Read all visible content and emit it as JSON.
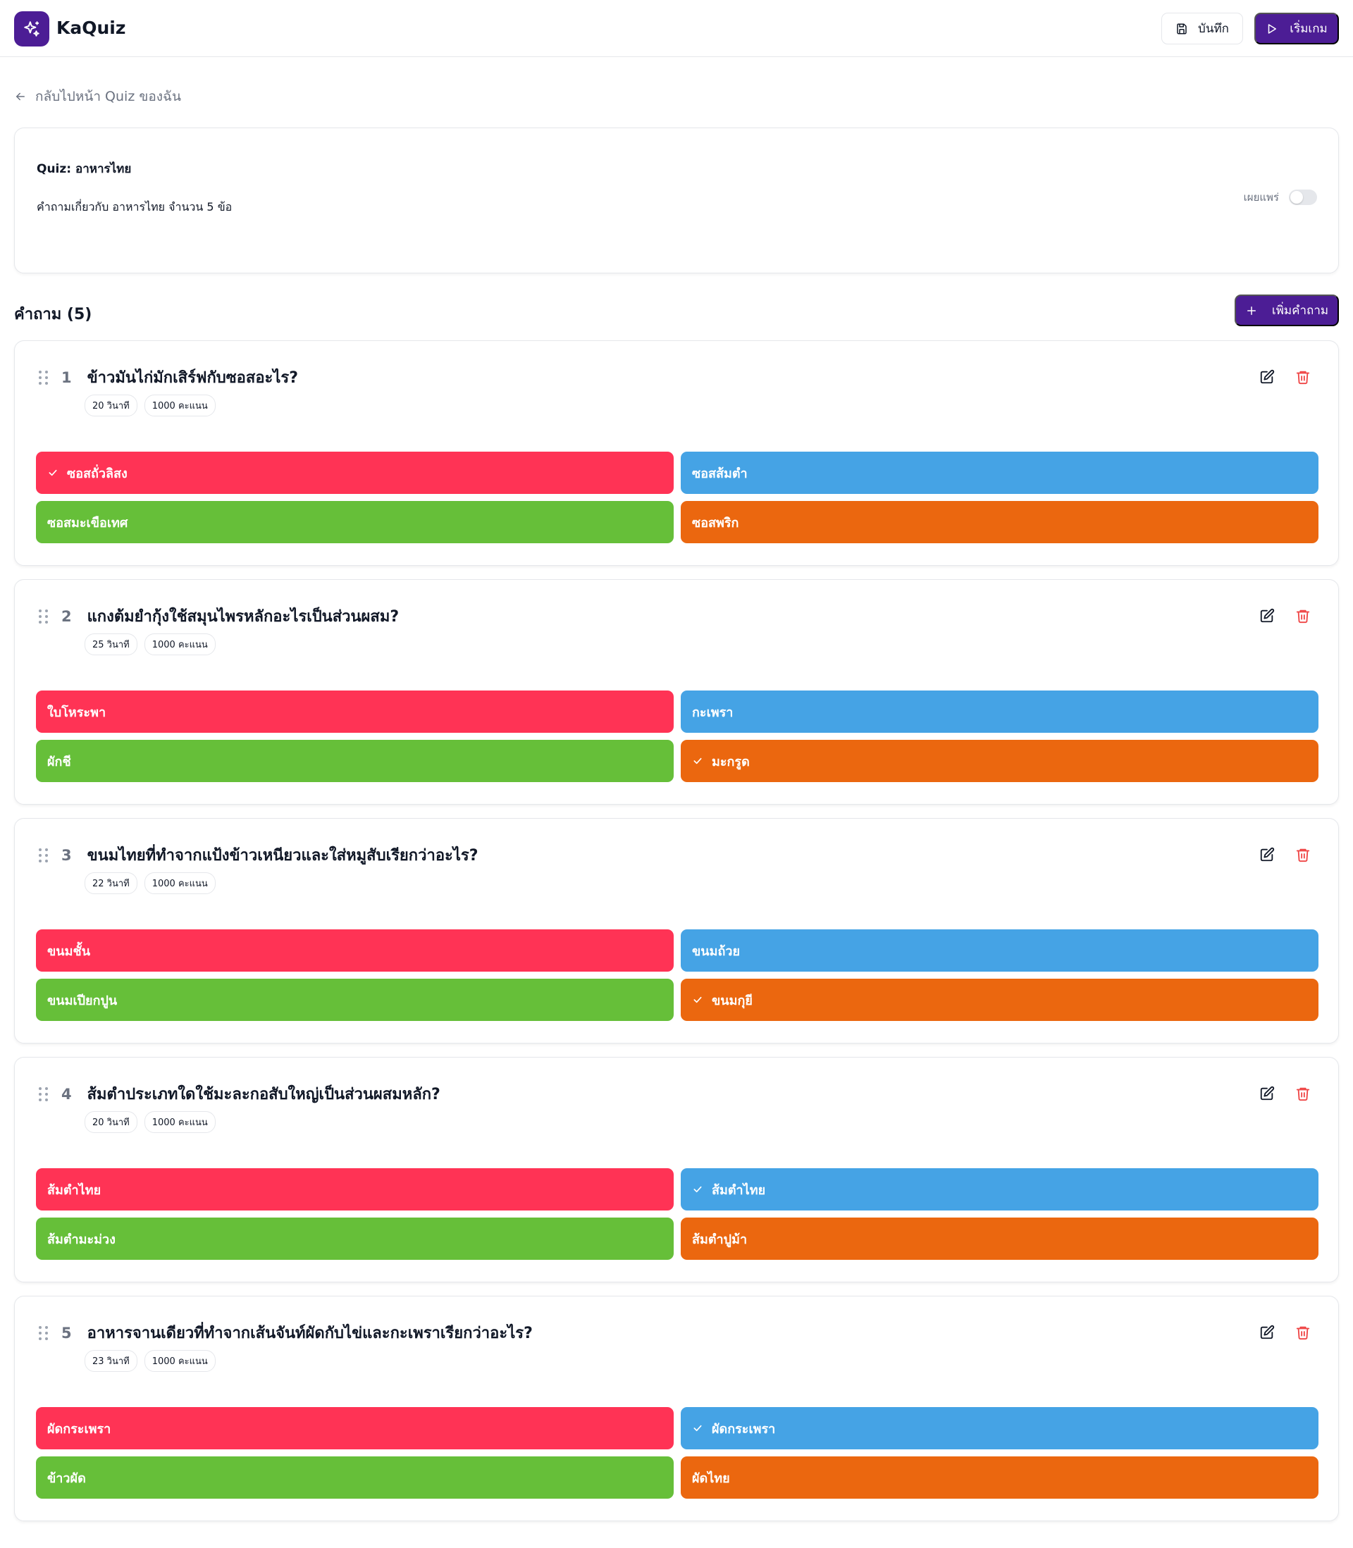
{
  "app": {
    "name": "KaQuiz",
    "brand_color": "#4c1d95"
  },
  "header": {
    "save_label": "บันทึก",
    "start_label": "เริ่มเกม"
  },
  "nav": {
    "back_label": "กลับไปหน้า Quiz ของฉัน"
  },
  "quiz": {
    "title": "Quiz: อาหารไทย",
    "description": "คำถามเกี่ยวกับ อาหารไทย จำนวน 5 ข้อ",
    "publish_label": "เผยแพร่",
    "published": false
  },
  "questions_section": {
    "title": "คำถาม (5)",
    "add_label": "เพิ่มคำถาม"
  },
  "answer_colors": [
    "#ff3355",
    "#45a3e5",
    "#66bf39",
    "#eb670f"
  ],
  "questions": [
    {
      "number": "1",
      "text": "ข้าวมันไก่มักเสิร์ฟกับซอสอะไร?",
      "time": "20 วินาที",
      "points": "1000 คะแนน",
      "answers": [
        {
          "text": "ซอสถั่วลิสง",
          "correct": true
        },
        {
          "text": "ซอสส้มตำ",
          "correct": false
        },
        {
          "text": "ซอสมะเขือเทศ",
          "correct": false
        },
        {
          "text": "ซอสพริก",
          "correct": false
        }
      ]
    },
    {
      "number": "2",
      "text": "แกงต้มยำกุ้งใช้สมุนไพรหลักอะไรเป็นส่วนผสม?",
      "time": "25 วินาที",
      "points": "1000 คะแนน",
      "answers": [
        {
          "text": "ใบโหระพา",
          "correct": false
        },
        {
          "text": "กะเพรา",
          "correct": false
        },
        {
          "text": "ผักชี",
          "correct": false
        },
        {
          "text": "มะกรูด",
          "correct": true
        }
      ]
    },
    {
      "number": "3",
      "text": "ขนมไทยที่ทำจากแป้งข้าวเหนียวและใส่หมูสับเรียกว่าอะไร?",
      "time": "22 วินาที",
      "points": "1000 คะแนน",
      "answers": [
        {
          "text": "ขนมชั้น",
          "correct": false
        },
        {
          "text": "ขนมถ้วย",
          "correct": false
        },
        {
          "text": "ขนมเปียกปูน",
          "correct": false
        },
        {
          "text": "ขนมกุยี",
          "correct": true
        }
      ]
    },
    {
      "number": "4",
      "text": "ส้มตำประเภทใดใช้มะละกอสับใหญ่เป็นส่วนผสมหลัก?",
      "time": "20 วินาที",
      "points": "1000 คะแนน",
      "answers": [
        {
          "text": "ส้มตำไทย",
          "correct": false
        },
        {
          "text": "ส้มตำไทย",
          "correct": true
        },
        {
          "text": "ส้มตำมะม่วง",
          "correct": false
        },
        {
          "text": "ส้มตำปูม้า",
          "correct": false
        }
      ]
    },
    {
      "number": "5",
      "text": "อาหารจานเดียวที่ทำจากเส้นจันท์ผัดกับไข่และกะเพราเรียกว่าอะไร?",
      "time": "23 วินาที",
      "points": "1000 คะแนน",
      "answers": [
        {
          "text": "ผัดกระเพรา",
          "correct": false
        },
        {
          "text": "ผัดกระเพรา",
          "correct": true
        },
        {
          "text": "ข้าวผัด",
          "correct": false
        },
        {
          "text": "ผัดไทย",
          "correct": false
        }
      ]
    }
  ]
}
